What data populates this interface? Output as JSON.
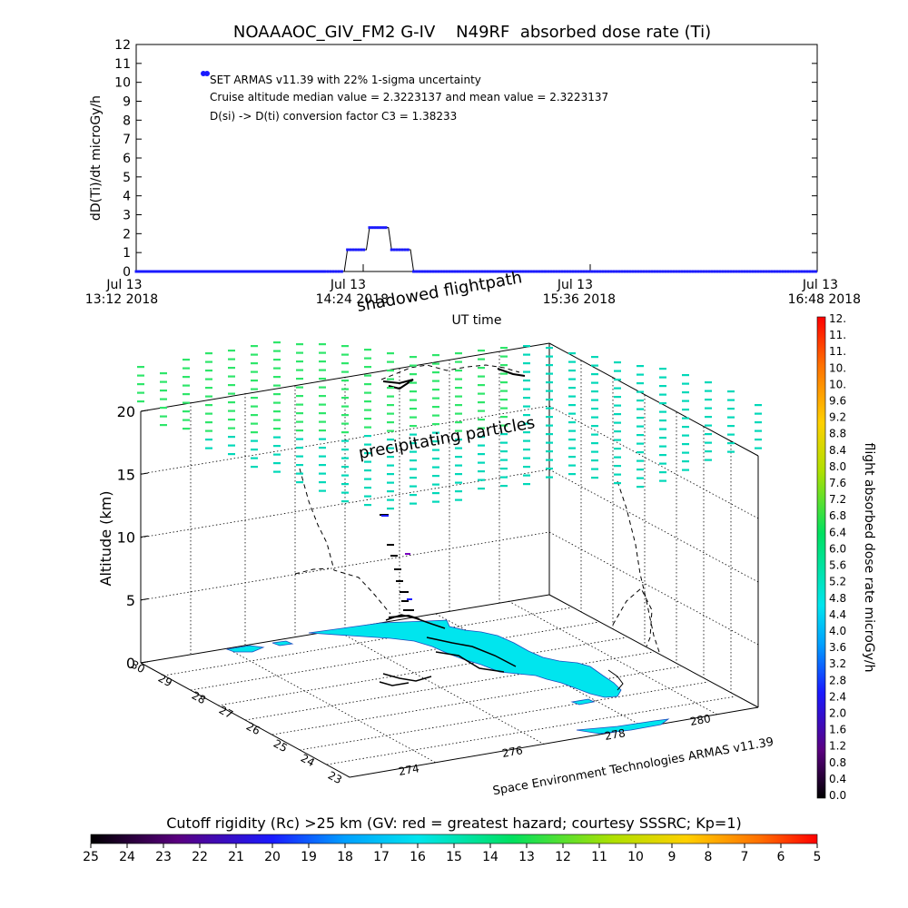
{
  "chart_data": [
    {
      "type": "line",
      "title": "NOAAAOC_GIV_FM2 G-IV    N49RF  absorbed dose rate (Ti)",
      "ylabel": "dD(Ti)/dt microGy/h",
      "xlabel": "UT time",
      "ylim": [
        0,
        12
      ],
      "yticks": [
        "0",
        "1",
        "2",
        "3",
        "4",
        "5",
        "6",
        "7",
        "8",
        "9",
        "10",
        "11",
        "12"
      ],
      "xticks": [
        {
          "line1": "Jul 13",
          "line2": "13:12 2018"
        },
        {
          "line1": "Jul 13",
          "line2": "14:24 2018"
        },
        {
          "line1": "Jul 13",
          "line2": "15:36 2018"
        },
        {
          "line1": "Jul 13",
          "line2": "16:48 2018"
        }
      ],
      "x_unit": "minutes after 13:12 UT",
      "xlim": [
        0,
        216
      ],
      "series": [
        {
          "values": [
            [
              0,
              0
            ],
            [
              60,
              0
            ],
            [
              66,
              0
            ],
            [
              67,
              1.15
            ],
            [
              73,
              1.15
            ],
            [
              74,
              2.32
            ],
            [
              80,
              2.32
            ],
            [
              81,
              1.15
            ],
            [
              87,
              1.15
            ],
            [
              88,
              0
            ],
            [
              130,
              0
            ],
            [
              216,
              0
            ]
          ]
        }
      ],
      "annotations": [
        "SET ARMAS v11.39 with 22% 1-sigma uncertainty",
        "Cruise altitude median value = 2.3223137 and mean value = 2.3223137",
        "D(si) -> D(ti) conversion factor C3 = 1.38233"
      ],
      "color": "#1a1aff"
    },
    {
      "type": "scatter",
      "ylabel": "Altitude (km)",
      "zticks": [
        "0",
        "5",
        "10",
        "15",
        "20"
      ],
      "latitude_ticks": [
        "23",
        "24",
        "25",
        "26",
        "27",
        "28",
        "29",
        "30"
      ],
      "longitude_ticks": [
        "274",
        "276",
        "278",
        "280"
      ],
      "labels": {
        "shadowed": "shadowed flightpath",
        "precipitating": "precipitating particles",
        "credit": "Space Environment Technologies ARMAS v11.39"
      },
      "land_color": "#00e5ee",
      "particle_colors": [
        "#2ee66a",
        "#00d8b8"
      ]
    }
  ],
  "colorbar_dose": {
    "label": "flight absorbed dose rate microGy/h",
    "ticks": [
      "0.0",
      "0.4",
      "0.8",
      "1.2",
      "1.6",
      "2.0",
      "2.4",
      "2.8",
      "3.2",
      "3.6",
      "4.0",
      "4.4",
      "4.8",
      "5.2",
      "5.6",
      "6.0",
      "6.4",
      "6.8",
      "7.2",
      "7.6",
      "8.0",
      "8.4",
      "8.8",
      "9.2",
      "9.6",
      "10.",
      "10.",
      "11.",
      "11.",
      "12."
    ]
  },
  "colorbar_rigidity": {
    "label": "Cutoff rigidity (Rc) >25 km (GV: red = greatest hazard; courtesy SSSRC; Kp=1)",
    "ticks": [
      "25",
      "24",
      "23",
      "22",
      "21",
      "20",
      "19",
      "18",
      "17",
      "16",
      "15",
      "14",
      "13",
      "12",
      "11",
      "10",
      "9",
      "8",
      "7",
      "6",
      "5"
    ]
  }
}
